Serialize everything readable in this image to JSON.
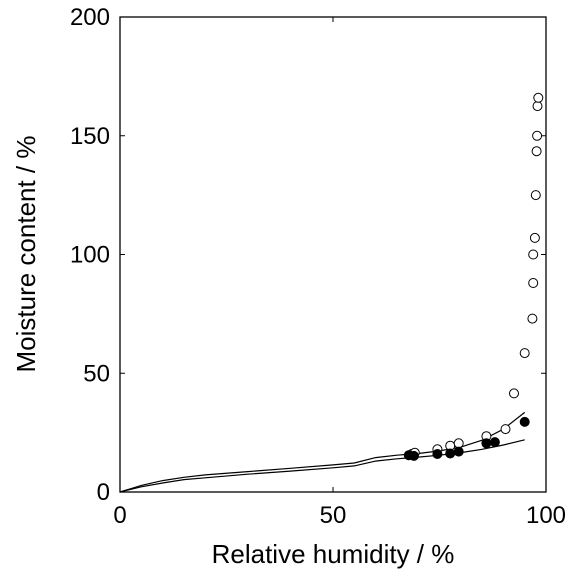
{
  "chart_data": {
    "type": "scatter",
    "xlabel": "Relative humidity / %",
    "ylabel": "Moisture content / %",
    "xlim": [
      0,
      100
    ],
    "ylim": [
      0,
      200
    ],
    "x_ticks": [
      0,
      50,
      100
    ],
    "y_ticks": [
      0,
      50,
      100,
      150,
      200
    ],
    "grid": false,
    "series": [
      {
        "marker": "open-circle",
        "x": [
          68.5,
          69.2,
          74.5,
          77.5,
          79.5,
          86.0,
          90.5,
          92.5,
          95.0,
          96.8,
          97.0,
          97.0,
          97.4,
          97.6,
          97.8,
          97.9,
          98.0,
          98.2
        ],
        "y": [
          16.0,
          16.5,
          18.0,
          19.5,
          20.5,
          23.5,
          26.5,
          41.5,
          58.5,
          73.0,
          88.0,
          100.0,
          107.0,
          125.0,
          143.5,
          150.0,
          162.5,
          166.0
        ]
      },
      {
        "marker": "filled-circle",
        "x": [
          67.8,
          69.0,
          74.5,
          77.5,
          79.5,
          86.0,
          88.0,
          95.0
        ],
        "y": [
          15.5,
          15.2,
          16.0,
          16.2,
          17.0,
          20.5,
          21.0,
          29.5
        ]
      },
      {
        "type": "line",
        "x": [
          0,
          5,
          10,
          15,
          20,
          30,
          40,
          50,
          55,
          60,
          65,
          70,
          75,
          80,
          85,
          90,
          95
        ],
        "y": [
          0,
          2.8,
          4.8,
          6.2,
          7.2,
          8.6,
          10.0,
          11.4,
          12.2,
          14.5,
          15.5,
          16.2,
          17.3,
          18.9,
          21.8,
          26.5,
          33.5
        ]
      },
      {
        "type": "line",
        "x": [
          0,
          5,
          10,
          15,
          20,
          30,
          40,
          50,
          55,
          60,
          65,
          70,
          75,
          80,
          85,
          90,
          95
        ],
        "y": [
          0,
          2.2,
          3.8,
          5.2,
          6.0,
          7.5,
          8.8,
          10.2,
          11.0,
          13.0,
          14.0,
          14.7,
          15.5,
          16.6,
          18.0,
          19.8,
          22.0
        ]
      }
    ]
  }
}
